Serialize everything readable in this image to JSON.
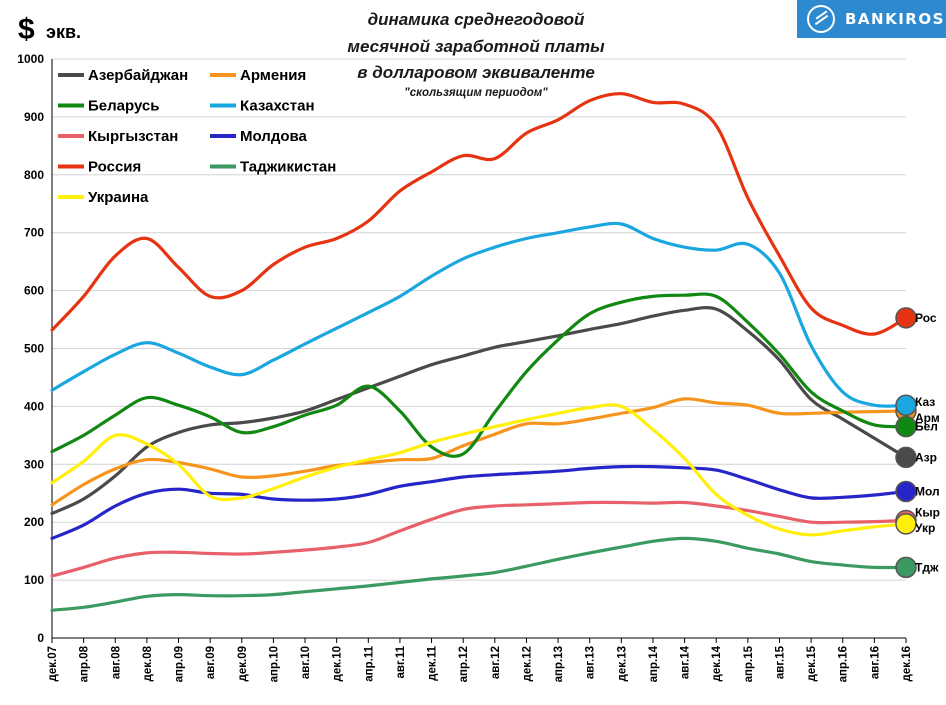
{
  "header": {
    "currency_symbol": "$",
    "currency_unit": "экв.",
    "brand": "BANKIROS"
  },
  "chart_data": {
    "type": "line",
    "title_lines": [
      "динамика среднегодовой",
      "месячной заработной платы",
      "в долларовом эквиваленте"
    ],
    "subtitle": "\"скользящим периодом\"",
    "ylabel": "$ экв.",
    "xlabel": "",
    "ylim": [
      0,
      1000
    ],
    "y_ticks": [
      "0",
      "100",
      "200",
      "300",
      "400",
      "500",
      "600",
      "700",
      "800",
      "900",
      "1000"
    ],
    "grid": true,
    "legend_position": "top-left",
    "categories": [
      "дек.07",
      "апр.08",
      "авг.08",
      "дек.08",
      "апр.09",
      "авг.09",
      "дек.09",
      "апр.10",
      "авг.10",
      "дек.10",
      "апр.11",
      "авг.11",
      "дек.11",
      "апр.12",
      "авг.12",
      "дек.12",
      "апр.13",
      "авг.13",
      "дек.13",
      "апр.14",
      "авг.14",
      "дек.14",
      "апр.15",
      "авг.15",
      "дек.15",
      "апр.16",
      "авг.16",
      "дек.16"
    ],
    "series": [
      {
        "name": "Азербайджан",
        "short": "Азр",
        "color": "#4a4a4a",
        "values": [
          215,
          240,
          280,
          330,
          355,
          368,
          372,
          380,
          392,
          412,
          432,
          452,
          472,
          487,
          502,
          512,
          522,
          533,
          543,
          556,
          566,
          568,
          530,
          480,
          412,
          378,
          345,
          312
        ]
      },
      {
        "name": "Армения",
        "short": "Арм",
        "color": "#f7941d",
        "values": [
          230,
          265,
          292,
          308,
          303,
          292,
          278,
          280,
          288,
          298,
          303,
          308,
          310,
          332,
          352,
          370,
          370,
          378,
          388,
          398,
          413,
          406,
          402,
          388,
          388,
          390,
          391,
          392
        ]
      },
      {
        "name": "Беларусь",
        "short": "Бел",
        "color": "#118811",
        "values": [
          322,
          350,
          385,
          415,
          402,
          382,
          355,
          365,
          385,
          402,
          435,
          392,
          330,
          318,
          390,
          460,
          515,
          560,
          580,
          590,
          592,
          590,
          545,
          490,
          425,
          392,
          368,
          365
        ]
      },
      {
        "name": "Казахстан",
        "short": "Каз",
        "color": "#1aa7e0",
        "values": [
          428,
          460,
          490,
          510,
          492,
          468,
          455,
          480,
          508,
          535,
          562,
          590,
          625,
          655,
          675,
          690,
          700,
          710,
          715,
          690,
          675,
          670,
          680,
          630,
          505,
          425,
          402,
          402
        ]
      },
      {
        "name": "Кыргызстан",
        "short": "Кыр",
        "color": "#e8616a",
        "values": [
          107,
          122,
          138,
          147,
          148,
          146,
          145,
          148,
          152,
          157,
          165,
          185,
          205,
          222,
          228,
          230,
          232,
          234,
          234,
          233,
          234,
          228,
          220,
          210,
          200,
          200,
          201,
          203
        ]
      },
      {
        "name": "Молдова",
        "short": "Мол",
        "color": "#2525c8",
        "values": [
          172,
          195,
          228,
          250,
          257,
          250,
          248,
          240,
          238,
          240,
          248,
          262,
          270,
          278,
          282,
          285,
          288,
          293,
          296,
          296,
          294,
          290,
          274,
          256,
          242,
          243,
          247,
          253
        ]
      },
      {
        "name": "Россия",
        "short": "Рос",
        "color": "#e63312",
        "values": [
          532,
          590,
          660,
          690,
          640,
          590,
          600,
          645,
          675,
          690,
          720,
          772,
          805,
          833,
          828,
          872,
          895,
          928,
          940,
          925,
          922,
          885,
          760,
          660,
          570,
          540,
          525,
          553
        ]
      },
      {
        "name": "Таджикистан",
        "short": "Тдж",
        "color": "#3a9a62",
        "values": [
          48,
          53,
          62,
          72,
          75,
          73,
          73,
          75,
          80,
          85,
          90,
          96,
          102,
          107,
          113,
          124,
          136,
          147,
          157,
          167,
          172,
          167,
          155,
          145,
          132,
          126,
          122,
          122
        ]
      },
      {
        "name": "Украина",
        "short": "Укр",
        "color": "#ffef0a",
        "values": [
          268,
          305,
          350,
          335,
          300,
          245,
          242,
          258,
          278,
          295,
          308,
          320,
          338,
          352,
          365,
          377,
          388,
          398,
          400,
          360,
          310,
          248,
          212,
          188,
          178,
          185,
          192,
          197
        ]
      }
    ]
  }
}
